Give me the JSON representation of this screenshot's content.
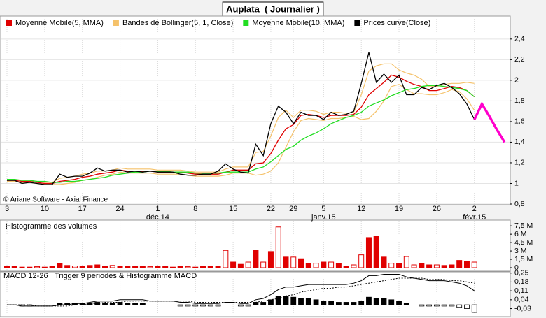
{
  "chart_data": [
    {
      "type": "line",
      "title": "Auplata  ( Journalier )",
      "annotation": "© Ariane Software - Axial Finance",
      "categories": [
        "3",
        null,
        null,
        null,
        null,
        "10",
        null,
        null,
        null,
        null,
        "17",
        null,
        null,
        null,
        null,
        "24",
        null,
        null,
        null,
        null,
        "1",
        null,
        null,
        null,
        null,
        "8",
        null,
        null,
        null,
        null,
        "15",
        null,
        null,
        null,
        null,
        "22",
        null,
        null,
        "29",
        null,
        null,
        null,
        "5",
        null,
        null,
        null,
        null,
        "12",
        null,
        null,
        null,
        null,
        "19",
        null,
        null,
        null,
        null,
        "26",
        null,
        null,
        null,
        null,
        "2",
        null,
        null,
        null,
        null
      ],
      "month_labels": [
        null,
        null,
        null,
        null,
        null,
        null,
        null,
        null,
        null,
        null,
        null,
        null,
        null,
        null,
        null,
        null,
        null,
        null,
        null,
        null,
        "déc.14",
        null,
        null,
        null,
        null,
        null,
        null,
        null,
        null,
        null,
        null,
        null,
        null,
        null,
        null,
        null,
        null,
        null,
        null,
        null,
        null,
        null,
        "janv.15",
        null,
        null,
        null,
        null,
        null,
        null,
        null,
        null,
        null,
        null,
        null,
        null,
        null,
        null,
        null,
        null,
        null,
        null,
        null,
        "févr.15",
        null,
        null,
        null,
        null
      ],
      "ylim": [
        0.8,
        2.575
      ],
      "yticks": [
        {
          "value": 0.8,
          "label": "0,8"
        },
        1,
        {
          "value": 1.2,
          "label": "1,2"
        },
        {
          "value": 1.4,
          "label": "1,4"
        },
        {
          "value": 1.6,
          "label": "1,6"
        },
        {
          "value": 1.8,
          "label": "1,8"
        },
        2,
        {
          "value": 2.2,
          "label": "2,2"
        },
        {
          "value": 2.4,
          "label": "2,4"
        }
      ],
      "grid": true,
      "series": [
        {
          "name": "Moyenne Mobile(5, MMA)",
          "color": "#e00000",
          "values": [
            1.03,
            1.03,
            1.02,
            1.02,
            1.01,
            1.0,
            1.0,
            1.02,
            1.03,
            1.04,
            1.06,
            1.07,
            1.09,
            1.1,
            1.11,
            1.13,
            1.12,
            1.12,
            1.12,
            1.12,
            1.11,
            1.11,
            1.11,
            1.11,
            1.1,
            1.09,
            1.09,
            1.09,
            1.09,
            1.11,
            1.13,
            1.13,
            1.13,
            1.19,
            1.2,
            1.29,
            1.42,
            1.53,
            1.57,
            1.66,
            1.67,
            1.66,
            1.64,
            1.66,
            1.66,
            1.66,
            1.67,
            1.74,
            1.86,
            1.92,
            1.98,
            2.05,
            2.03,
            1.99,
            1.96,
            1.94,
            1.9,
            1.9,
            1.92,
            1.94,
            1.93,
            1.9,
            1.84,
            null,
            null,
            null,
            null
          ]
        },
        {
          "name": "Bandes de Bollinger(5, 1, Close)",
          "color": "#f5c26b",
          "upper": [
            1.04,
            1.04,
            1.03,
            1.03,
            1.02,
            1.01,
            1.01,
            1.05,
            1.06,
            1.07,
            1.09,
            1.1,
            1.12,
            1.12,
            1.13,
            1.15,
            1.14,
            1.14,
            1.14,
            1.14,
            1.13,
            1.13,
            1.13,
            1.13,
            1.12,
            1.11,
            1.11,
            1.11,
            1.11,
            1.14,
            1.16,
            1.16,
            1.16,
            1.3,
            1.31,
            1.46,
            1.64,
            1.71,
            1.64,
            1.71,
            1.71,
            1.7,
            1.67,
            1.69,
            1.69,
            1.68,
            1.69,
            1.86,
            2.09,
            2.14,
            2.16,
            2.16,
            2.1,
            2.07,
            2.05,
            2.01,
            1.94,
            1.94,
            1.96,
            1.97,
            1.97,
            1.98,
            1.97,
            null,
            null,
            null,
            null
          ],
          "lower": [
            1.02,
            1.02,
            1.01,
            1.01,
            1.0,
            0.99,
            0.99,
            0.99,
            1.0,
            1.01,
            1.03,
            1.04,
            1.06,
            1.08,
            1.09,
            1.11,
            1.1,
            1.1,
            1.1,
            1.1,
            1.09,
            1.09,
            1.09,
            1.09,
            1.08,
            1.07,
            1.07,
            1.07,
            1.07,
            1.08,
            1.1,
            1.1,
            1.1,
            1.08,
            1.09,
            1.12,
            1.2,
            1.35,
            1.5,
            1.61,
            1.63,
            1.62,
            1.61,
            1.63,
            1.63,
            1.64,
            1.65,
            1.62,
            1.63,
            1.7,
            1.8,
            1.94,
            1.96,
            1.91,
            1.87,
            1.87,
            1.86,
            1.86,
            1.88,
            1.91,
            1.89,
            1.82,
            1.71,
            null,
            null,
            null,
            null
          ]
        },
        {
          "name": "Moyenne Mobile(10, MMA)",
          "color": "#22dd22",
          "values": [
            1.04,
            1.04,
            1.03,
            1.03,
            1.02,
            1.02,
            1.01,
            1.01,
            1.02,
            1.02,
            1.03,
            1.04,
            1.05,
            1.06,
            1.08,
            1.09,
            1.1,
            1.11,
            1.11,
            1.12,
            1.12,
            1.12,
            1.11,
            1.11,
            1.11,
            1.1,
            1.1,
            1.1,
            1.1,
            1.11,
            1.11,
            1.11,
            1.11,
            1.14,
            1.16,
            1.21,
            1.27,
            1.33,
            1.36,
            1.42,
            1.46,
            1.49,
            1.53,
            1.58,
            1.61,
            1.64,
            1.66,
            1.69,
            1.75,
            1.78,
            1.81,
            1.85,
            1.88,
            1.91,
            1.92,
            1.94,
            1.95,
            1.95,
            1.94,
            1.93,
            1.92,
            1.9,
            1.84,
            null,
            null,
            null,
            null
          ]
        },
        {
          "name": "Prices curve(Close)",
          "color": "#000000",
          "values": [
            1.03,
            1.03,
            1.0,
            1.01,
            1.0,
            0.99,
            0.99,
            1.09,
            1.06,
            1.07,
            1.07,
            1.1,
            1.15,
            1.12,
            1.13,
            1.13,
            1.11,
            1.12,
            1.11,
            1.12,
            1.11,
            1.11,
            1.11,
            1.09,
            1.08,
            1.08,
            1.09,
            1.09,
            1.12,
            1.19,
            1.14,
            1.11,
            1.1,
            1.38,
            1.27,
            1.58,
            1.75,
            1.69,
            1.58,
            1.69,
            1.66,
            1.66,
            1.62,
            1.69,
            1.66,
            1.67,
            1.7,
            1.97,
            2.27,
            1.98,
            2.06,
            1.98,
            2.05,
            1.86,
            1.86,
            1.93,
            1.91,
            1.95,
            1.97,
            1.93,
            1.87,
            1.77,
            1.62,
            null,
            null,
            null,
            null
          ]
        }
      ],
      "projection": {
        "color": "#ff00cc",
        "values": [
          null,
          null,
          null,
          null,
          null,
          null,
          null,
          null,
          null,
          null,
          null,
          null,
          null,
          null,
          null,
          null,
          null,
          null,
          null,
          null,
          null,
          null,
          null,
          null,
          null,
          null,
          null,
          null,
          null,
          null,
          null,
          null,
          null,
          null,
          null,
          null,
          null,
          null,
          null,
          null,
          null,
          null,
          null,
          null,
          null,
          null,
          null,
          null,
          null,
          null,
          null,
          null,
          null,
          null,
          null,
          null,
          null,
          null,
          null,
          null,
          null,
          null,
          1.62,
          1.77,
          1.65,
          1.52,
          1.4
        ]
      }
    },
    {
      "type": "bar",
      "title": "Histogramme des volumes",
      "color": "#e00000",
      "values": [
        200000,
        200000,
        100000,
        100000,
        200000,
        100000,
        200000,
        800000,
        400000,
        300000,
        300000,
        400000,
        500000,
        300000,
        400000,
        300000,
        200000,
        300000,
        200000,
        200000,
        200000,
        200000,
        100000,
        200000,
        200000,
        100000,
        200000,
        200000,
        300000,
        3100000,
        1000000,
        600000,
        1000000,
        3100000,
        1000000,
        2900000,
        7300000,
        1900000,
        1900000,
        1600000,
        800000,
        800000,
        1000000,
        1000000,
        800000,
        300000,
        500000,
        2300000,
        5400000,
        5600000,
        1900000,
        800000,
        800000,
        2000000,
        500000,
        800000,
        500000,
        500000,
        400000,
        500000,
        1300000,
        1100000,
        1000000,
        null,
        null,
        null,
        null
      ],
      "filled": [
        true,
        true,
        true,
        true,
        false,
        true,
        true,
        true,
        true,
        false,
        true,
        true,
        true,
        true,
        false,
        true,
        true,
        true,
        true,
        false,
        true,
        true,
        true,
        true,
        false,
        true,
        true,
        true,
        true,
        false,
        true,
        true,
        false,
        true,
        false,
        true,
        false,
        true,
        false,
        true,
        true,
        false,
        true,
        false,
        true,
        true,
        false,
        false,
        true,
        true,
        true,
        false,
        true,
        false,
        false,
        true,
        true,
        false,
        true,
        true,
        true,
        true,
        false,
        null,
        null,
        null,
        null
      ],
      "ylim": [
        0,
        8400000
      ],
      "yticks": [
        0,
        {
          "value": 1500000,
          "label": "1,5 M"
        },
        {
          "value": 3000000,
          "label": "3 M"
        },
        {
          "value": 4500000,
          "label": "4,5 M"
        },
        {
          "value": 6000000,
          "label": "6 M"
        },
        {
          "value": 7500000,
          "label": "7,5 M"
        }
      ]
    },
    {
      "type": "macd",
      "ylim": [
        -0.06,
        0.265
      ],
      "yticks": [
        {
          "value": -0.03,
          "label": "-0,03"
        },
        {
          "value": 0.04,
          "label": "0,04"
        },
        {
          "value": 0.11,
          "label": "0,11"
        },
        {
          "value": 0.18,
          "label": "0,18"
        },
        {
          "value": 0.25,
          "label": "0,25"
        }
      ],
      "series": [
        {
          "name": "MACD 12-26",
          "color": "#000000",
          "style": "solid",
          "values": [
            0,
            0,
            -0.01,
            -0.01,
            -0.01,
            -0.01,
            -0.01,
            0,
            0,
            0.01,
            0.01,
            0.02,
            0.03,
            0.03,
            0.03,
            0.04,
            0.04,
            0.04,
            0.04,
            0.03,
            0.03,
            0.03,
            0.03,
            0.02,
            0.02,
            0.01,
            0.01,
            0.01,
            0.01,
            0.02,
            0.02,
            0.01,
            0.01,
            0.04,
            0.05,
            0.08,
            0.12,
            0.14,
            0.14,
            0.15,
            0.16,
            0.16,
            0.16,
            0.16,
            0.16,
            0.16,
            0.17,
            0.19,
            0.23,
            0.23,
            0.24,
            0.24,
            0.24,
            0.22,
            0.21,
            0.2,
            0.19,
            0.19,
            0.19,
            0.18,
            0.17,
            0.15,
            0.11,
            null,
            null,
            null,
            null
          ]
        },
        {
          "name": "Trigger 9 periodes & Histogramme MACD",
          "color": "#000000",
          "style": "dotted",
          "values": [
            0,
            0,
            0,
            0,
            -0.01,
            -0.01,
            -0.01,
            -0.01,
            -0.01,
            0,
            0,
            0.01,
            0.01,
            0.02,
            0.02,
            0.02,
            0.03,
            0.03,
            0.03,
            0.03,
            0.03,
            0.03,
            0.03,
            0.03,
            0.03,
            0.02,
            0.02,
            0.02,
            0.02,
            0.02,
            0.02,
            0.02,
            0.02,
            0.02,
            0.03,
            0.04,
            0.05,
            0.07,
            0.08,
            0.1,
            0.11,
            0.12,
            0.13,
            0.13,
            0.14,
            0.14,
            0.15,
            0.16,
            0.17,
            0.18,
            0.19,
            0.2,
            0.21,
            0.21,
            0.21,
            0.21,
            0.2,
            0.2,
            0.2,
            0.19,
            0.19,
            0.18,
            0.17,
            null,
            null,
            null,
            null
          ]
        }
      ],
      "histogram": [
        0,
        0,
        -0.01,
        -0.01,
        0,
        0,
        0,
        0.01,
        0.01,
        0.01,
        0.01,
        0.01,
        0.02,
        0.01,
        0.01,
        0.02,
        0.01,
        0.01,
        0.01,
        0,
        0,
        0,
        0,
        -0.01,
        -0.01,
        -0.01,
        -0.01,
        -0.01,
        -0.01,
        0,
        0,
        -0.01,
        -0.01,
        0.02,
        0.02,
        0.04,
        0.07,
        0.07,
        0.06,
        0.05,
        0.05,
        0.04,
        0.03,
        0.03,
        0.02,
        0.02,
        0.02,
        0.03,
        0.06,
        0.05,
        0.05,
        0.04,
        0.03,
        0.01,
        0,
        -0.01,
        -0.01,
        -0.01,
        -0.01,
        -0.01,
        -0.02,
        -0.03,
        -0.06,
        null,
        null,
        null,
        null
      ]
    }
  ]
}
